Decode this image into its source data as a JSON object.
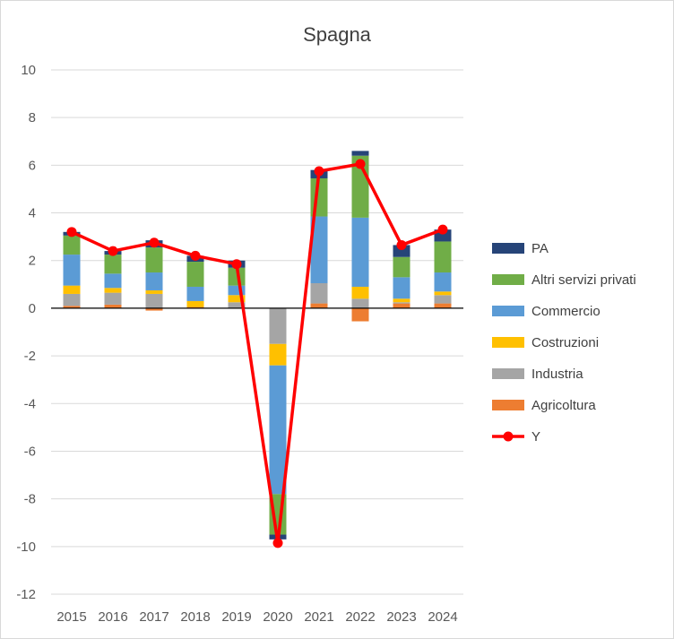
{
  "chart_data": {
    "type": "bar",
    "stacked": true,
    "title": "Spagna",
    "xlabel": "",
    "ylabel": "",
    "ylim": [
      -12,
      10
    ],
    "yticks": [
      10,
      8,
      6,
      4,
      2,
      0,
      -2,
      -4,
      -6,
      -8,
      -10,
      -12
    ],
    "grid": true,
    "legend_position": "right",
    "categories": [
      "2015",
      "2016",
      "2017",
      "2018",
      "2019",
      "2020",
      "2021",
      "2022",
      "2023",
      "2024"
    ],
    "series": [
      {
        "name": "Agricoltura",
        "color": "#ed7d31",
        "values": [
          0.1,
          0.15,
          -0.1,
          0.05,
          0.0,
          0.0,
          0.2,
          -0.55,
          0.2,
          0.2
        ]
      },
      {
        "name": "Industria",
        "color": "#a5a5a5",
        "values": [
          0.5,
          0.5,
          0.6,
          0.0,
          0.25,
          -1.5,
          0.85,
          0.4,
          0.05,
          0.35
        ]
      },
      {
        "name": "Costruzioni",
        "color": "#ffc000",
        "values": [
          0.35,
          0.2,
          0.15,
          0.25,
          0.3,
          -0.9,
          0.0,
          0.5,
          0.15,
          0.15
        ]
      },
      {
        "name": "Commercio",
        "color": "#5b9bd5",
        "values": [
          1.3,
          0.6,
          0.75,
          0.6,
          0.4,
          -5.4,
          2.8,
          2.9,
          0.9,
          0.8
        ]
      },
      {
        "name": "Altri servizi privati",
        "color": "#70ad47",
        "values": [
          0.8,
          0.8,
          1.05,
          1.05,
          0.75,
          -1.7,
          1.6,
          2.6,
          0.85,
          1.3
        ]
      },
      {
        "name": "PA",
        "color": "#264478",
        "values": [
          0.15,
          0.15,
          0.3,
          0.25,
          0.3,
          -0.2,
          0.35,
          0.2,
          0.5,
          0.5
        ]
      }
    ],
    "line_series": {
      "name": "Y",
      "color": "#ff0000",
      "values": [
        3.2,
        2.4,
        2.75,
        2.2,
        1.85,
        -9.85,
        5.75,
        6.05,
        2.65,
        3.3
      ]
    },
    "legend_order": [
      "PA",
      "Altri servizi privati",
      "Commercio",
      "Costruzioni",
      "Industria",
      "Agricoltura",
      "Y"
    ]
  }
}
